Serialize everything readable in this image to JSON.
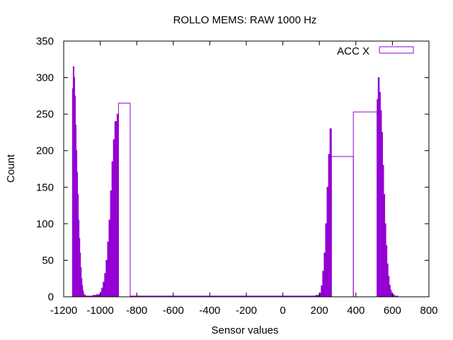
{
  "chart_data": {
    "type": "bar",
    "title": "ROLLO MEMS: RAW 1000 Hz",
    "xlabel": "Sensor values",
    "ylabel": "Count",
    "xlim": [
      -1200,
      800
    ],
    "ylim": [
      0,
      350
    ],
    "xticks": [
      "-1200",
      "-1000",
      "-800",
      "-600",
      "-400",
      "-200",
      "0",
      "200",
      "400",
      "600",
      "800"
    ],
    "yticks": [
      "0",
      "50",
      "100",
      "150",
      "200",
      "250",
      "300",
      "350"
    ],
    "grid": false,
    "legend": {
      "position": "top-right"
    },
    "colors": {
      "fill": "#9400d3",
      "axis": "#000000"
    },
    "series": [
      {
        "name": "ACC X",
        "bins": [
          {
            "x0": -1152,
            "x1": -1148,
            "y": 285
          },
          {
            "x0": -1148,
            "x1": -1144,
            "y": 315
          },
          {
            "x0": -1144,
            "x1": -1140,
            "y": 300
          },
          {
            "x0": -1140,
            "x1": -1136,
            "y": 275
          },
          {
            "x0": -1136,
            "x1": -1132,
            "y": 235
          },
          {
            "x0": -1132,
            "x1": -1128,
            "y": 200
          },
          {
            "x0": -1128,
            "x1": -1124,
            "y": 170
          },
          {
            "x0": -1124,
            "x1": -1120,
            "y": 140
          },
          {
            "x0": -1120,
            "x1": -1116,
            "y": 105
          },
          {
            "x0": -1116,
            "x1": -1112,
            "y": 80
          },
          {
            "x0": -1112,
            "x1": -1108,
            "y": 60
          },
          {
            "x0": -1108,
            "x1": -1104,
            "y": 40
          },
          {
            "x0": -1104,
            "x1": -1100,
            "y": 25
          },
          {
            "x0": -1100,
            "x1": -1096,
            "y": 15
          },
          {
            "x0": -1096,
            "x1": -1092,
            "y": 8
          },
          {
            "x0": -1092,
            "x1": -1088,
            "y": 4
          },
          {
            "x0": -1088,
            "x1": -1080,
            "y": 2
          },
          {
            "x0": -1080,
            "x1": -1060,
            "y": 1
          },
          {
            "x0": -1060,
            "x1": -1040,
            "y": 1
          },
          {
            "x0": -1040,
            "x1": -1020,
            "y": 2
          },
          {
            "x0": -1020,
            "x1": -1000,
            "y": 3
          },
          {
            "x0": -1000,
            "x1": -992,
            "y": 6
          },
          {
            "x0": -992,
            "x1": -984,
            "y": 12
          },
          {
            "x0": -984,
            "x1": -976,
            "y": 20
          },
          {
            "x0": -976,
            "x1": -968,
            "y": 32
          },
          {
            "x0": -968,
            "x1": -960,
            "y": 50
          },
          {
            "x0": -960,
            "x1": -952,
            "y": 75
          },
          {
            "x0": -952,
            "x1": -944,
            "y": 105
          },
          {
            "x0": -944,
            "x1": -936,
            "y": 145
          },
          {
            "x0": -936,
            "x1": -928,
            "y": 185
          },
          {
            "x0": -928,
            "x1": -920,
            "y": 215
          },
          {
            "x0": -920,
            "x1": -908,
            "y": 240
          },
          {
            "x0": -908,
            "x1": -900,
            "y": 250
          },
          {
            "x0": -900,
            "x1": -836,
            "y": 265
          },
          {
            "x0": -836,
            "x1": -820,
            "y": 1
          },
          {
            "x0": -820,
            "x1": 180,
            "y": 1
          },
          {
            "x0": 180,
            "x1": 200,
            "y": 2
          },
          {
            "x0": 200,
            "x1": 210,
            "y": 5
          },
          {
            "x0": 210,
            "x1": 218,
            "y": 15
          },
          {
            "x0": 218,
            "x1": 226,
            "y": 35
          },
          {
            "x0": 226,
            "x1": 234,
            "y": 60
          },
          {
            "x0": 234,
            "x1": 242,
            "y": 100
          },
          {
            "x0": 242,
            "x1": 250,
            "y": 150
          },
          {
            "x0": 250,
            "x1": 258,
            "y": 195
          },
          {
            "x0": 258,
            "x1": 266,
            "y": 230
          },
          {
            "x0": 266,
            "x1": 386,
            "y": 192
          },
          {
            "x0": 386,
            "x1": 516,
            "y": 253
          },
          {
            "x0": 516,
            "x1": 522,
            "y": 270
          },
          {
            "x0": 522,
            "x1": 528,
            "y": 300
          },
          {
            "x0": 528,
            "x1": 534,
            "y": 280
          },
          {
            "x0": 534,
            "x1": 540,
            "y": 255
          },
          {
            "x0": 540,
            "x1": 546,
            "y": 225
          },
          {
            "x0": 546,
            "x1": 552,
            "y": 180
          },
          {
            "x0": 552,
            "x1": 558,
            "y": 140
          },
          {
            "x0": 558,
            "x1": 564,
            "y": 100
          },
          {
            "x0": 564,
            "x1": 570,
            "y": 70
          },
          {
            "x0": 570,
            "x1": 576,
            "y": 45
          },
          {
            "x0": 576,
            "x1": 582,
            "y": 28
          },
          {
            "x0": 582,
            "x1": 588,
            "y": 16
          },
          {
            "x0": 588,
            "x1": 594,
            "y": 9
          },
          {
            "x0": 594,
            "x1": 600,
            "y": 5
          },
          {
            "x0": 600,
            "x1": 610,
            "y": 3
          },
          {
            "x0": 610,
            "x1": 630,
            "y": 1
          }
        ]
      }
    ]
  }
}
